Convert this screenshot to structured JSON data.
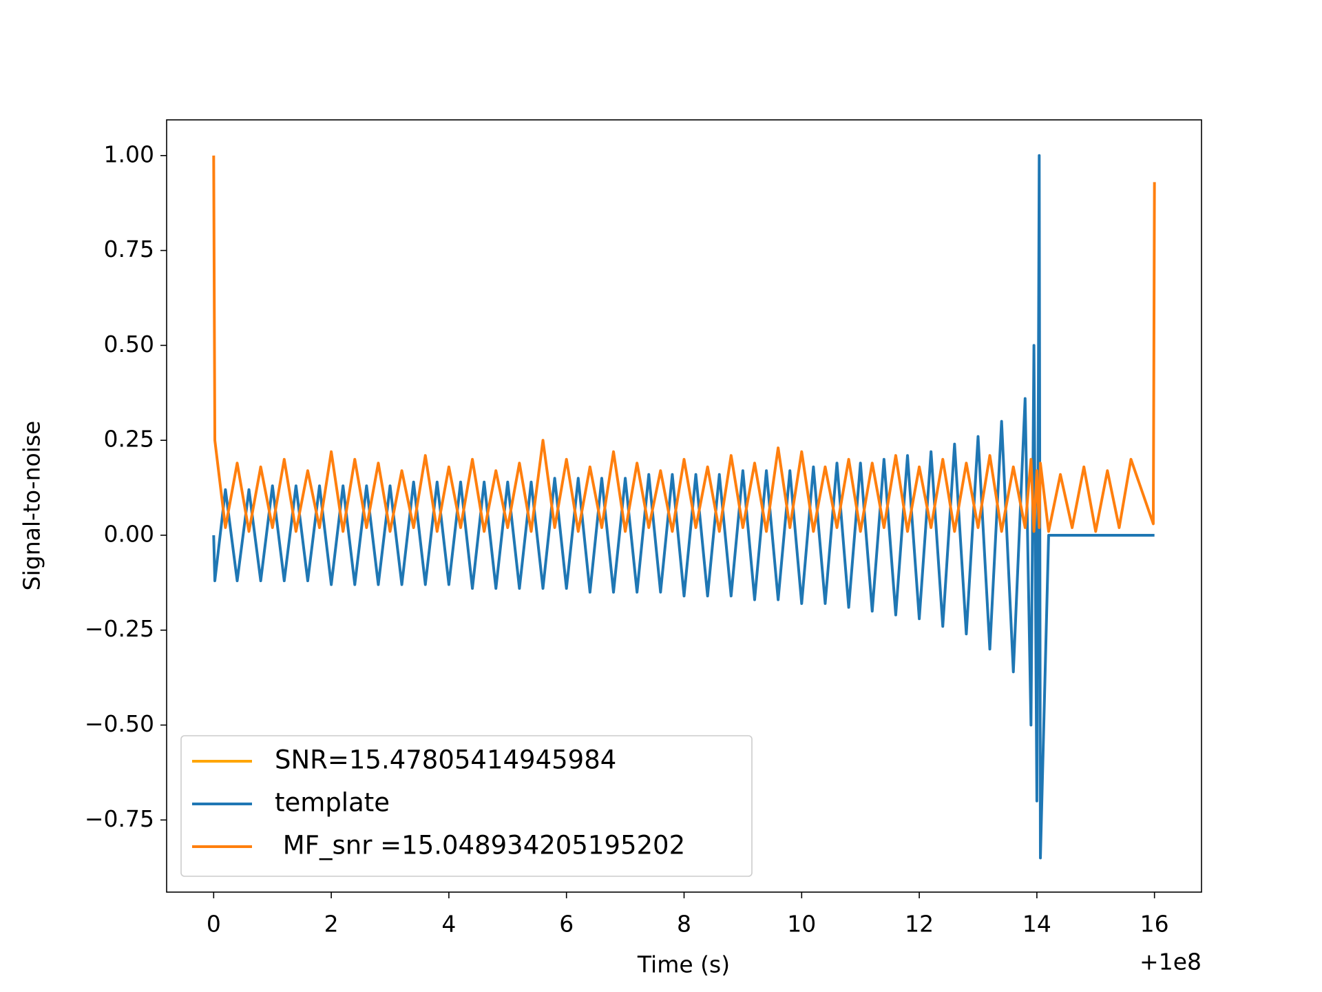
{
  "chart_data": {
    "type": "line",
    "xlabel": "Time (s)",
    "ylabel": "Signal-to-noise",
    "x_offset_label": "+1e8",
    "xlim": [
      -0.8,
      16.8
    ],
    "ylim": [
      -0.94,
      1.094
    ],
    "xticks": [
      0,
      2,
      4,
      6,
      8,
      10,
      12,
      14,
      16
    ],
    "yticks": [
      {
        "value": -0.75,
        "label": "−0.75"
      },
      {
        "value": -0.5,
        "label": "−0.50"
      },
      {
        "value": -0.25,
        "label": "−0.25"
      },
      {
        "value": 0,
        "label": "0.00"
      },
      {
        "value": 0.25,
        "label": "0.25"
      },
      {
        "value": 0.5,
        "label": "0.50"
      },
      {
        "value": 0.75,
        "label": "0.75"
      },
      {
        "value": 1,
        "label": "1.00"
      }
    ],
    "legend": "lower left",
    "x": [
      0,
      0.02,
      0.2,
      0.4,
      0.6,
      0.8,
      1.0,
      1.2,
      1.4,
      1.6,
      1.8,
      2.0,
      2.2,
      2.4,
      2.6,
      2.8,
      3.0,
      3.2,
      3.4,
      3.6,
      3.8,
      4.0,
      4.2,
      4.4,
      4.6,
      4.8,
      5.0,
      5.2,
      5.4,
      5.6,
      5.8,
      6.0,
      6.2,
      6.4,
      6.6,
      6.8,
      7.0,
      7.2,
      7.4,
      7.6,
      7.8,
      8.0,
      8.2,
      8.4,
      8.6,
      8.8,
      9.0,
      9.2,
      9.4,
      9.6,
      9.8,
      10.0,
      10.2,
      10.4,
      10.6,
      10.8,
      11.0,
      11.2,
      11.4,
      11.6,
      11.8,
      12.0,
      12.2,
      12.4,
      12.6,
      12.8,
      13.0,
      13.2,
      13.4,
      13.6,
      13.8,
      13.9,
      13.95,
      14.0,
      14.04,
      14.06,
      14.2,
      14.4,
      14.6,
      14.8,
      15.0,
      15.2,
      15.4,
      15.6,
      15.98,
      16.0
    ],
    "series": [
      {
        "name": "SNR=15.47805414945984",
        "color": "#ffa500",
        "values": [
          null,
          null,
          null,
          null,
          null,
          null,
          null,
          null,
          null,
          null,
          null,
          null,
          null,
          null,
          null,
          null,
          null,
          null,
          null,
          null,
          null,
          null,
          null,
          null,
          null,
          null,
          null,
          null,
          null,
          null,
          null,
          null,
          null,
          null,
          null,
          null,
          null,
          null,
          null,
          null,
          null,
          null,
          null,
          null,
          null,
          null,
          null,
          null,
          null,
          null,
          null,
          null,
          null,
          null,
          null,
          null,
          null,
          null,
          null,
          null,
          null,
          null,
          null,
          null,
          null,
          null,
          null,
          null,
          null,
          null,
          null,
          null,
          null,
          null,
          null,
          null,
          null,
          null,
          null,
          null,
          null,
          null,
          null,
          null,
          null,
          null
        ]
      },
      {
        "name": "template",
        "color": "#1f77b4",
        "values": [
          0.0,
          -0.12,
          0.12,
          -0.12,
          0.12,
          -0.12,
          0.13,
          -0.12,
          0.13,
          -0.12,
          0.13,
          -0.13,
          0.13,
          -0.13,
          0.13,
          -0.13,
          0.13,
          -0.13,
          0.14,
          -0.13,
          0.14,
          -0.13,
          0.14,
          -0.14,
          0.14,
          -0.14,
          0.14,
          -0.14,
          0.14,
          -0.14,
          0.15,
          -0.14,
          0.15,
          -0.15,
          0.15,
          -0.15,
          0.15,
          -0.15,
          0.16,
          -0.15,
          0.16,
          -0.16,
          0.16,
          -0.16,
          0.16,
          -0.16,
          0.17,
          -0.17,
          0.17,
          -0.17,
          0.17,
          -0.18,
          0.18,
          -0.18,
          0.19,
          -0.19,
          0.19,
          -0.2,
          0.2,
          -0.21,
          0.21,
          -0.22,
          0.22,
          -0.24,
          0.24,
          -0.26,
          0.26,
          -0.3,
          0.3,
          -0.36,
          0.36,
          -0.5,
          0.5,
          -0.7,
          1.0,
          -0.85,
          0,
          0,
          0,
          0,
          0,
          0,
          0,
          0,
          0,
          0
        ]
      },
      {
        "name": " MF_snr =15.048934205195202",
        "color": "#ff7f0e",
        "values": [
          1.0,
          0.25,
          0.02,
          0.19,
          0.01,
          0.18,
          0.02,
          0.2,
          0.01,
          0.17,
          0.02,
          0.22,
          0.01,
          0.2,
          0.02,
          0.19,
          0.01,
          0.17,
          0.02,
          0.21,
          0.01,
          0.18,
          0.02,
          0.2,
          0.01,
          0.17,
          0.02,
          0.19,
          0.01,
          0.25,
          0.02,
          0.2,
          0.01,
          0.18,
          0.02,
          0.22,
          0.01,
          0.19,
          0.02,
          0.17,
          0.01,
          0.2,
          0.02,
          0.18,
          0.01,
          0.21,
          0.02,
          0.19,
          0.01,
          0.23,
          0.02,
          0.22,
          0.01,
          0.18,
          0.02,
          0.2,
          0.01,
          0.19,
          0.02,
          0.21,
          0.01,
          0.18,
          0.02,
          0.2,
          0.01,
          0.19,
          0.02,
          0.21,
          0.01,
          0.18,
          0.02,
          0.2,
          0.01,
          0.17,
          0.02,
          0.19,
          0.01,
          0.16,
          0.02,
          0.18,
          0.01,
          0.17,
          0.02,
          0.2,
          0.03,
          0.93
        ]
      }
    ]
  }
}
